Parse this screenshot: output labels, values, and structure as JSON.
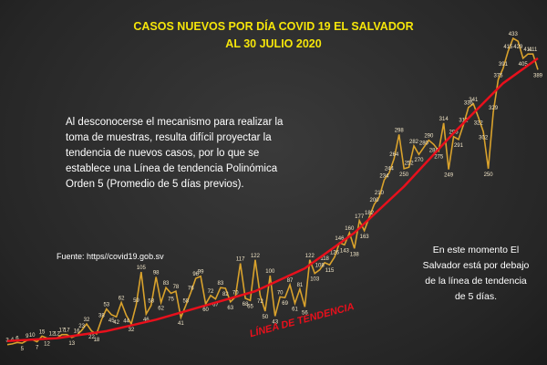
{
  "chart_data": {
    "type": "line",
    "title": "CASOS NUEVOS POR DÍA COVID 19 EL SALVADOR",
    "subtitle": "AL 30 JULIO 2020",
    "description": "Al desconocerse el mecanismo para realizar la toma de muestras, resulta difícil proyectar la tendencia de nuevos casos, por lo que se establece una Línea de tendencia Polinómica Orden 5 (Promedio de 5 días previos).",
    "source": "Fuente: https//covid19.gob.sv",
    "note": "En este momento El Salvador está por debajo de la línea de tendencia de 5 días.",
    "series": [
      {
        "name": "Casos nuevos",
        "color": "#d9a22c",
        "values": [
          3,
          4,
          6,
          5,
          9,
          10,
          7,
          15,
          12,
          12,
          12,
          17,
          17,
          13,
          16,
          23,
          32,
          22,
          18,
          38,
          53,
          45,
          42,
          62,
          44,
          32,
          59,
          105,
          46,
          58,
          98,
          62,
          83,
          75,
          78,
          41,
          58,
          76,
          96,
          99,
          60,
          72,
          67,
          83,
          82,
          63,
          70,
          117,
          68,
          65,
          122,
          72,
          50,
          100,
          43,
          70,
          69,
          87,
          61,
          81,
          56,
          122,
          103,
          108,
          118,
          115,
          126,
          146,
          143,
          160,
          138,
          177,
          163,
          182,
          200,
          210,
          234,
          244,
          264,
          298,
          250,
          252,
          282,
          270,
          280,
          290,
          284,
          275,
          314,
          249,
          295,
          291,
          312,
          336,
          341,
          322,
          302,
          250,
          329,
          375,
          391,
          415,
          433,
          429,
          405,
          411,
          411,
          389
        ]
      }
    ],
    "trend": {
      "name": "LÍNEA DE TENDENCIA",
      "color": "#e8101c",
      "x": [
        0,
        10,
        20,
        30,
        40,
        50,
        60,
        70,
        80,
        90,
        100,
        107
      ],
      "values": [
        8,
        12,
        22,
        38,
        58,
        78,
        110,
        160,
        225,
        300,
        370,
        405
      ]
    }
  }
}
